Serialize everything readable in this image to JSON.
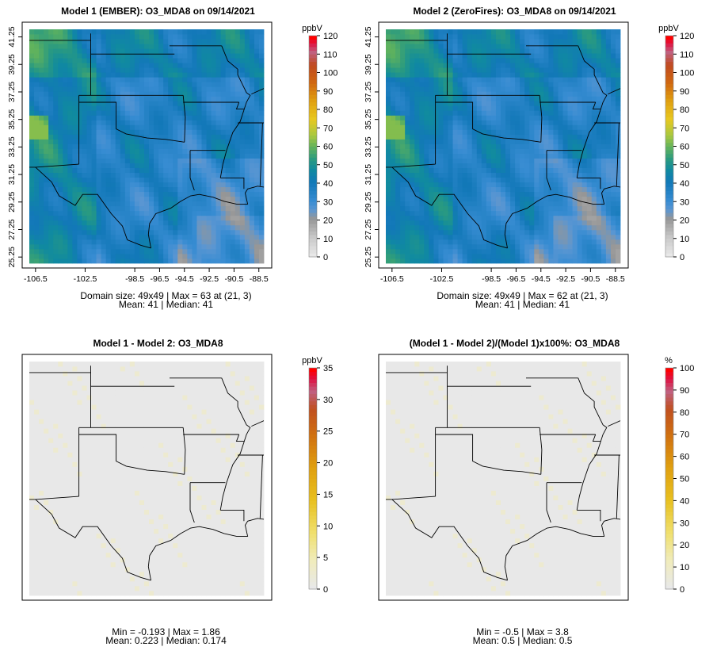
{
  "colors": {
    "frame": "#000000",
    "na_gray": "#e6e6e6",
    "colorbar_ramp": [
      "#e8e8e8",
      "#c8c8c8",
      "#9a9a9a",
      "#3a7fc8",
      "#1078b8",
      "#108aa0",
      "#2a9a80",
      "#4aa860",
      "#a8c840",
      "#e8c820",
      "#e0a010",
      "#d06810",
      "#c04a20",
      "#c06080",
      "#e01040",
      "#ff0000"
    ],
    "diff_ramp": [
      "#e8e8e8",
      "#eeeac0",
      "#f0e070",
      "#e8c020",
      "#e0a010",
      "#d07010",
      "#c05020",
      "#c06080",
      "#e01040",
      "#ff0000"
    ]
  },
  "chart_data": [
    {
      "type": "heatmap",
      "panel": "top-left",
      "title": "Model 1 (EMBER): O3_MDA8 on 09/14/2021",
      "field": "absolute",
      "x_tick_labels": [
        "-106.5",
        "-102.5",
        "-98.5",
        "-96.5",
        "-94.5",
        "-92.5",
        "-90.5",
        "-88.5"
      ],
      "x_tick_values": [
        -106.5,
        -102.5,
        -98.5,
        -96.5,
        -94.5,
        -92.5,
        -90.5,
        -88.5
      ],
      "y_tick_labels": [
        "25.25",
        "27.25",
        "29.25",
        "31.25",
        "33.25",
        "35.25",
        "37.25",
        "39.25",
        "41.25"
      ],
      "y_tick_values": [
        25.25,
        27.25,
        29.25,
        31.25,
        33.25,
        35.25,
        37.25,
        39.25,
        41.25
      ],
      "xlim": [
        -107,
        -88.1
      ],
      "ylim": [
        24.8,
        41.8
      ],
      "colorbar": {
        "unit": "ppbV",
        "min": 0,
        "max": 120,
        "ticks": [
          "0",
          "10",
          "20",
          "30",
          "40",
          "50",
          "60",
          "70",
          "80",
          "90",
          "100",
          "110",
          "120"
        ]
      },
      "grid_size": "49x49",
      "stats_line1": "Domain size: 49x49 | Max = 63 at (21, 3)",
      "stats_line2": "Mean: 41 |  Median: 41",
      "max": 63,
      "max_cell": [
        21,
        3
      ],
      "mean": 41,
      "median": 41
    },
    {
      "type": "heatmap",
      "panel": "top-right",
      "title": "Model 2 (ZeroFires): O3_MDA8 on 09/14/2021",
      "field": "absolute",
      "x_tick_labels": [
        "-106.5",
        "-102.5",
        "-98.5",
        "-96.5",
        "-94.5",
        "-92.5",
        "-90.5",
        "-88.5"
      ],
      "x_tick_values": [
        -106.5,
        -102.5,
        -98.5,
        -96.5,
        -94.5,
        -92.5,
        -90.5,
        -88.5
      ],
      "y_tick_labels": [
        "25.25",
        "27.25",
        "29.25",
        "31.25",
        "33.25",
        "35.25",
        "37.25",
        "39.25",
        "41.25"
      ],
      "y_tick_values": [
        25.25,
        27.25,
        29.25,
        31.25,
        33.25,
        35.25,
        37.25,
        39.25,
        41.25
      ],
      "xlim": [
        -107,
        -88.1
      ],
      "ylim": [
        24.8,
        41.8
      ],
      "colorbar": {
        "unit": "ppbV",
        "min": 0,
        "max": 120,
        "ticks": [
          "0",
          "10",
          "20",
          "30",
          "40",
          "50",
          "60",
          "70",
          "80",
          "90",
          "100",
          "110",
          "120"
        ]
      },
      "grid_size": "49x49",
      "stats_line1": "Domain size: 49x49 | Max = 62 at (21, 3)",
      "stats_line2": "Mean: 41 |  Median: 41",
      "max": 62,
      "max_cell": [
        21,
        3
      ],
      "mean": 41,
      "median": 41
    },
    {
      "type": "heatmap",
      "panel": "bottom-left",
      "title": "Model 1 - Model 2: O3_MDA8",
      "field": "difference",
      "xlim": [
        -107,
        -88.1
      ],
      "ylim": [
        24.8,
        41.8
      ],
      "colorbar": {
        "unit": "ppbV",
        "min": 0,
        "max": 35,
        "ticks": [
          "0",
          "5",
          "10",
          "15",
          "20",
          "25",
          "30",
          "35"
        ]
      },
      "stats_line1": "Min = -0.193 | Max = 1.86",
      "stats_line2": "Mean: 0.223 |  Median: 0.174",
      "min": -0.193,
      "max": 1.86,
      "mean": 0.223,
      "median": 0.174
    },
    {
      "type": "heatmap",
      "panel": "bottom-right",
      "title": "(Model 1 - Model 2)/(Model 1)x100%: O3_MDA8",
      "field": "percent-difference",
      "xlim": [
        -107,
        -88.1
      ],
      "ylim": [
        24.8,
        41.8
      ],
      "colorbar": {
        "unit": "%",
        "min": 0,
        "max": 100,
        "ticks": [
          "0",
          "10",
          "20",
          "30",
          "40",
          "50",
          "60",
          "70",
          "80",
          "90",
          "100"
        ]
      },
      "stats_line1": "Min = -0.5 | Max = 3.8",
      "stats_line2": "Mean: 0.5 |  Median: 0.5",
      "min": -0.5,
      "max": 3.8,
      "mean": 0.5,
      "median": 0.5
    }
  ]
}
